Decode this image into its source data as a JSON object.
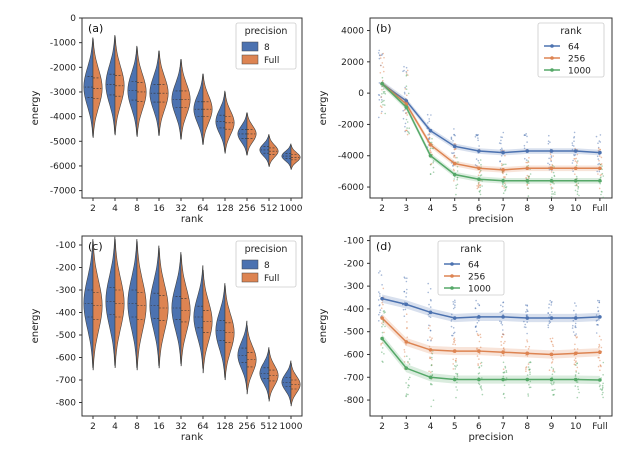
{
  "colors": {
    "blue": "#4C72B0",
    "orange": "#DD8452",
    "green": "#55A868",
    "frame": "#333333"
  },
  "chart_data": [
    {
      "panel": "(a)",
      "type": "violin",
      "xlabel": "rank",
      "ylabel": "energy",
      "categories": [
        "2",
        "4",
        "8",
        "16",
        "32",
        "64",
        "128",
        "256",
        "512",
        "1000"
      ],
      "yticks": [
        0,
        -1000,
        -2000,
        -3000,
        -4000,
        -5000,
        -6000,
        -7000
      ],
      "ylim": [
        -7300,
        0
      ],
      "legend": {
        "title": "precision",
        "entries": [
          "8",
          "Full"
        ],
        "position": "top-right"
      },
      "series": [
        {
          "name": "8",
          "median": [
            -2800,
            -2700,
            -2950,
            -3050,
            -3300,
            -3700,
            -4200,
            -4700,
            -5350,
            -5600
          ],
          "spread": [
            1050,
            1050,
            950,
            900,
            850,
            750,
            650,
            450,
            330,
            260
          ]
        },
        {
          "name": "Full",
          "median": [
            -2850,
            -2750,
            -3000,
            -3050,
            -3300,
            -3700,
            -4250,
            -4700,
            -5400,
            -5650
          ],
          "spread": [
            1050,
            1050,
            950,
            900,
            850,
            750,
            650,
            450,
            330,
            260
          ]
        }
      ]
    },
    {
      "panel": "(b)",
      "type": "line",
      "xlabel": "precision",
      "ylabel": "energy",
      "categories": [
        "2",
        "3",
        "4",
        "5",
        "6",
        "7",
        "8",
        "9",
        "10",
        "Full"
      ],
      "yticks": [
        4000,
        2000,
        0,
        -2000,
        -4000,
        -6000
      ],
      "ylim": [
        -6700,
        4800
      ],
      "legend": {
        "title": "rank",
        "entries": [
          "64",
          "256",
          "1000"
        ],
        "position": "top-right"
      },
      "series": [
        {
          "name": "64",
          "values": [
            600,
            -500,
            -2400,
            -3400,
            -3700,
            -3800,
            -3700,
            -3700,
            -3700,
            -3800
          ]
        },
        {
          "name": "256",
          "values": [
            600,
            -700,
            -3300,
            -4500,
            -4800,
            -4900,
            -4800,
            -4800,
            -4800,
            -4800
          ]
        },
        {
          "name": "1000",
          "values": [
            600,
            -900,
            -4000,
            -5200,
            -5500,
            -5600,
            -5600,
            -5600,
            -5600,
            -5600
          ]
        }
      ]
    },
    {
      "panel": "(c)",
      "type": "violin",
      "xlabel": "rank",
      "ylabel": "energy",
      "categories": [
        "2",
        "4",
        "8",
        "16",
        "32",
        "64",
        "128",
        "256",
        "512",
        "1000"
      ],
      "yticks": [
        -100,
        -200,
        -300,
        -400,
        -500,
        -600,
        -700,
        -800
      ],
      "ylim": [
        -860,
        -60
      ],
      "legend": {
        "title": "precision",
        "entries": [
          "8",
          "Full"
        ],
        "position": "top-right"
      },
      "series": [
        {
          "name": "8",
          "median": [
            -360,
            -350,
            -360,
            -370,
            -380,
            -420,
            -480,
            -590,
            -670,
            -710
          ],
          "spread": [
            150,
            150,
            150,
            140,
            130,
            120,
            110,
            80,
            60,
            50
          ]
        },
        {
          "name": "Full",
          "median": [
            -370,
            -360,
            -370,
            -380,
            -390,
            -440,
            -490,
            -610,
            -680,
            -720
          ],
          "spread": [
            150,
            150,
            150,
            140,
            130,
            120,
            110,
            80,
            60,
            50
          ]
        }
      ]
    },
    {
      "panel": "(d)",
      "type": "line",
      "xlabel": "precision",
      "ylabel": "energy",
      "categories": [
        "2",
        "3",
        "4",
        "5",
        "6",
        "7",
        "8",
        "9",
        "10",
        "Full"
      ],
      "yticks": [
        -100,
        -200,
        -300,
        -400,
        -500,
        -600,
        -700,
        -800
      ],
      "ylim": [
        -870,
        -80
      ],
      "legend": {
        "title": "rank",
        "entries": [
          "64",
          "256",
          "1000"
        ],
        "position": "top-center"
      },
      "series": [
        {
          "name": "64",
          "values": [
            -355,
            -380,
            -415,
            -440,
            -435,
            -435,
            -440,
            -440,
            -440,
            -435
          ]
        },
        {
          "name": "256",
          "values": [
            -440,
            -545,
            -580,
            -585,
            -585,
            -590,
            -595,
            -600,
            -595,
            -590
          ]
        },
        {
          "name": "1000",
          "values": [
            -530,
            -660,
            -700,
            -710,
            -710,
            -710,
            -710,
            -710,
            -710,
            -712
          ]
        }
      ]
    }
  ]
}
